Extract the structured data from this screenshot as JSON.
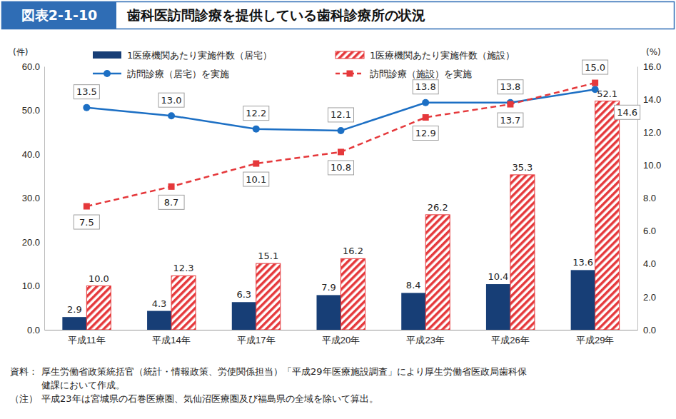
{
  "chart_data": {
    "type": "bar",
    "figure_label": "図表2-1-10",
    "title": "歯科医訪問診療を提供している歯科診療所の状況",
    "categories": [
      "平成11年",
      "平成14年",
      "平成17年",
      "平成20年",
      "平成23年",
      "平成26年",
      "平成29年"
    ],
    "y_label": "(件)",
    "y2_label": "(%)",
    "ylim": [
      0,
      60
    ],
    "yticks": [
      {
        "value": 0,
        "label": "0.0"
      },
      {
        "value": 10,
        "label": "10.0"
      },
      {
        "value": 20,
        "label": "20.0"
      },
      {
        "value": 30,
        "label": "30.0"
      },
      {
        "value": 40,
        "label": "40.0"
      },
      {
        "value": 50,
        "label": "50.0"
      },
      {
        "value": 60,
        "label": "60.0"
      }
    ],
    "y2lim": [
      0,
      16
    ],
    "y2ticks": [
      {
        "value": 0,
        "label": "0.0"
      },
      {
        "value": 2,
        "label": "2.0"
      },
      {
        "value": 4,
        "label": "4.0"
      },
      {
        "value": 6,
        "label": "6.0"
      },
      {
        "value": 8,
        "label": "8.0"
      },
      {
        "value": 10,
        "label": "10.0"
      },
      {
        "value": 12,
        "label": "12.0"
      },
      {
        "value": 14,
        "label": "14.0"
      },
      {
        "value": 16,
        "label": "16.0"
      }
    ],
    "grid": false,
    "legend": "top",
    "data_labels": true,
    "series": [
      {
        "name": "1医療機関あたり実施件数（居宅）",
        "type": "bar",
        "color": "#173e76",
        "values": [
          2.9,
          4.3,
          6.3,
          7.9,
          8.4,
          10.4,
          13.6
        ],
        "value_labels": [
          "2.9",
          "4.3",
          "6.3",
          "7.9",
          "8.4",
          "10.4",
          "13.6"
        ]
      },
      {
        "name": "1医療機関あたり実施件数（施設）",
        "type": "bar",
        "color": "#e5383b",
        "values": [
          10.0,
          12.3,
          15.1,
          16.2,
          26.2,
          35.3,
          52.1
        ],
        "value_labels": [
          "10.0",
          "12.3",
          "15.1",
          "16.2",
          "26.2",
          "35.3",
          "52.1"
        ]
      },
      {
        "name": "訪問診療（居宅）を実施",
        "type": "line",
        "axis": "y2",
        "color": "#1c6fc4",
        "marker": "circle",
        "line_style": "solid",
        "values": [
          13.5,
          13.0,
          12.2,
          12.1,
          13.8,
          13.8,
          14.6
        ],
        "value_labels": [
          "13.5",
          "13.0",
          "12.2",
          "12.1",
          "13.8",
          "13.8",
          "14.6"
        ]
      },
      {
        "name": "訪問診療（施設）を実施",
        "type": "line",
        "axis": "y2",
        "color": "#e5383b",
        "marker": "square",
        "line_style": "dashed",
        "values": [
          7.5,
          8.7,
          10.1,
          10.8,
          12.9,
          13.7,
          15.0
        ],
        "value_labels": [
          "7.5",
          "8.7",
          "10.1",
          "10.8",
          "12.9",
          "13.7",
          "15.0"
        ]
      }
    ],
    "source_label": "資料：",
    "source_lines": [
      "厚生労働省政策統括官（統計・情報政策、労使関係担当）「平成29年医療施設調査」により厚生労働省医政局歯科保",
      "健課において作成。"
    ],
    "note_label": "（注）",
    "note_lines": [
      "平成23年は宮城県の石巻医療圏、気仙沼医療圏及び福島県の全域を除いて算出。"
    ]
  }
}
